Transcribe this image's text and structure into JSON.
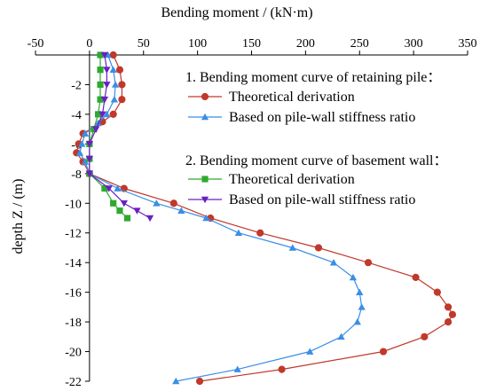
{
  "chart_data": {
    "type": "line",
    "title": "",
    "xlabel": "Bending moment / (kN·m)",
    "ylabel": "depth Z / (m)",
    "xlim": [
      -50,
      350
    ],
    "ylim": [
      0,
      -22
    ],
    "x_ticks": [
      "-50",
      "0",
      "50",
      "100",
      "150",
      "200",
      "250",
      "300",
      "350"
    ],
    "y_ticks": [
      "-2",
      "-4",
      "-6",
      "-8",
      "-10",
      "-12",
      "-14",
      "-16",
      "-18",
      "-20",
      "-22"
    ],
    "x_axis_position": "top",
    "grid": false,
    "legend": {
      "position": "right",
      "group1_title": "1. Bending moment curve of retaining pile：",
      "group2_title": "2. Bending moment curve of basement wall："
    },
    "series": [
      {
        "name": "Theoretical derivation",
        "group": 1,
        "color": "#c0392b",
        "marker": "circle",
        "points": [
          [
            22,
            0
          ],
          [
            28,
            -1
          ],
          [
            30,
            -2
          ],
          [
            30,
            -3
          ],
          [
            22,
            -4
          ],
          [
            12,
            -4.5
          ],
          [
            -6,
            -5.3
          ],
          [
            -10,
            -6
          ],
          [
            -12,
            -6.6
          ],
          [
            -6,
            -7.2
          ],
          [
            0,
            -8
          ],
          [
            32,
            -9
          ],
          [
            78,
            -10
          ],
          [
            112,
            -11
          ],
          [
            158,
            -12
          ],
          [
            212,
            -13
          ],
          [
            258,
            -14
          ],
          [
            302,
            -15
          ],
          [
            322,
            -16
          ],
          [
            332,
            -17
          ],
          [
            336,
            -17.5
          ],
          [
            332,
            -18
          ],
          [
            310,
            -19
          ],
          [
            272,
            -20
          ],
          [
            178,
            -21.2
          ],
          [
            102,
            -22
          ]
        ]
      },
      {
        "name": "Based on pile-wall stiffness ratio",
        "group": 1,
        "color": "#3a8ee6",
        "marker": "triangle",
        "points": [
          [
            17,
            0
          ],
          [
            22,
            -1
          ],
          [
            24,
            -2
          ],
          [
            23,
            -3
          ],
          [
            16,
            -4
          ],
          [
            8,
            -4.6
          ],
          [
            -4,
            -5.3
          ],
          [
            -7,
            -6
          ],
          [
            -9,
            -6.6
          ],
          [
            -4,
            -7.2
          ],
          [
            0,
            -8
          ],
          [
            26,
            -9
          ],
          [
            62,
            -10
          ],
          [
            85,
            -10.5
          ],
          [
            108,
            -11
          ],
          [
            138,
            -12
          ],
          [
            188,
            -13
          ],
          [
            226,
            -14
          ],
          [
            244,
            -15
          ],
          [
            250,
            -16
          ],
          [
            252,
            -17
          ],
          [
            248,
            -18
          ],
          [
            233,
            -19
          ],
          [
            204,
            -20
          ],
          [
            137,
            -21.2
          ],
          [
            80,
            -22
          ]
        ]
      },
      {
        "name": "Theoretical derivation",
        "group": 2,
        "color": "#2eaa2e",
        "marker": "square",
        "points": [
          [
            10,
            0
          ],
          [
            10,
            -1
          ],
          [
            10,
            -2
          ],
          [
            10,
            -3
          ],
          [
            8,
            -4
          ],
          [
            4,
            -5
          ],
          [
            0,
            -6
          ],
          [
            0,
            -7
          ],
          [
            0,
            -8
          ],
          [
            14,
            -9
          ],
          [
            22,
            -10
          ],
          [
            28,
            -10.5
          ],
          [
            35,
            -11
          ]
        ]
      },
      {
        "name": "Based on pile-wall stiffness ratio",
        "group": 2,
        "color": "#6a1fc4",
        "marker": "triangle-down",
        "points": [
          [
            14,
            0
          ],
          [
            16,
            -1
          ],
          [
            16,
            -2
          ],
          [
            14,
            -3
          ],
          [
            12,
            -4
          ],
          [
            6,
            -5
          ],
          [
            0,
            -6
          ],
          [
            0,
            -7
          ],
          [
            0,
            -8
          ],
          [
            18,
            -9
          ],
          [
            32,
            -10
          ],
          [
            44,
            -10.5
          ],
          [
            56,
            -11
          ]
        ]
      }
    ]
  }
}
